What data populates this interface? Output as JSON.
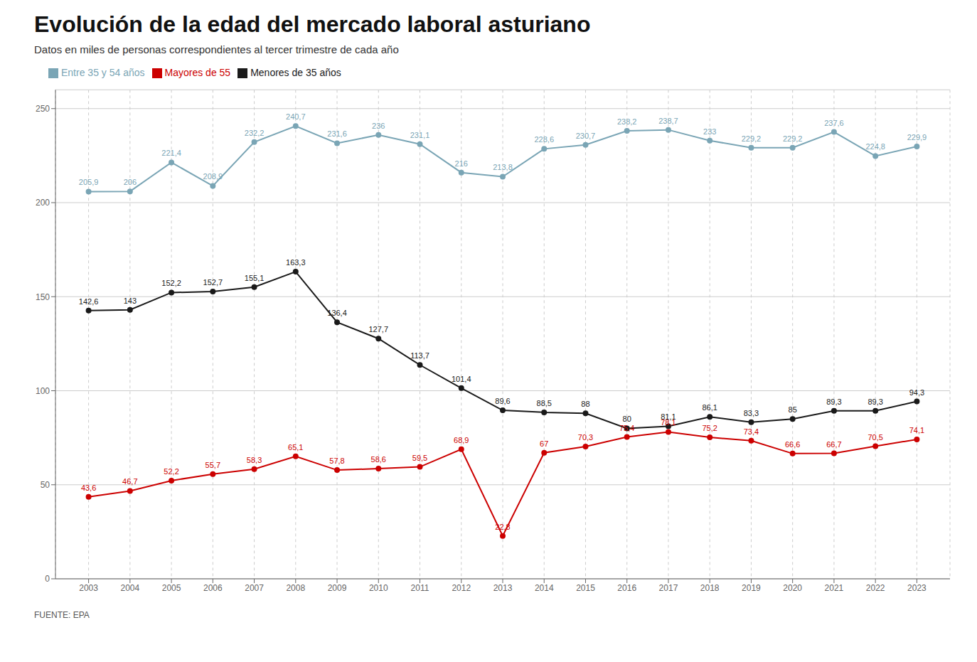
{
  "chart_data": {
    "type": "line",
    "title": "Evolución de la edad del mercado laboral asturiano",
    "subtitle": "Datos en miles de personas correspondientes al tercer trimestre de cada año",
    "source": "FUENTE: EPA",
    "x": [
      2003,
      2004,
      2005,
      2006,
      2007,
      2008,
      2009,
      2010,
      2011,
      2012,
      2013,
      2014,
      2015,
      2016,
      2017,
      2018,
      2019,
      2020,
      2021,
      2022,
      2023
    ],
    "series": [
      {
        "name": "Menores de 35 años",
        "color": "#1a1a1a",
        "marker": "circle",
        "values": [
          142.6,
          143.0,
          152.2,
          152.7,
          155.1,
          163.3,
          136.4,
          127.7,
          113.7,
          101.4,
          89.6,
          88.5,
          88.0,
          80.0,
          81.1,
          86.1,
          83.3,
          85.0,
          89.3,
          89.3,
          94.3
        ],
        "value_labels": [
          "142,6",
          "143",
          "152,2",
          "152,7",
          "155,1",
          "163,3",
          "136,4",
          "127,7",
          "113,7",
          "101,4",
          "89,6",
          "88,5",
          "88",
          "80",
          "81,1",
          "86,1",
          "83,3",
          "85",
          "89,3",
          "89,3",
          "94,3"
        ]
      },
      {
        "name": "Entre 35 y 54 años",
        "color": "#7aa5b5",
        "marker": "circle",
        "values": [
          205.9,
          206.0,
          221.4,
          208.9,
          232.2,
          240.7,
          231.6,
          236.0,
          231.1,
          216.0,
          213.8,
          228.6,
          230.7,
          238.2,
          238.7,
          233.0,
          229.2,
          229.2,
          237.6,
          224.8,
          229.9
        ],
        "value_labels": [
          "205,9",
          "206",
          "221,4",
          "208,9",
          "232,2",
          "240,7",
          "231,6",
          "236",
          "231,1",
          "216",
          "213,8",
          "228,6",
          "230,7",
          "238,2",
          "238,7",
          "233",
          "229,2",
          "229,2",
          "237,6",
          "224,8",
          "229,9"
        ]
      },
      {
        "name": "Mayores de 55",
        "color": "#cc0000",
        "marker": "circle",
        "values": [
          43.6,
          46.7,
          52.2,
          55.7,
          58.3,
          65.1,
          57.8,
          58.6,
          59.5,
          68.9,
          22.8,
          67.0,
          70.3,
          75.4,
          78.1,
          75.2,
          73.4,
          66.6,
          66.7,
          70.5,
          74.1
        ],
        "value_labels": [
          "43,6",
          "46,7",
          "52,2",
          "55,7",
          "58,3",
          "65,1",
          "57,8",
          "58,6",
          "59,5",
          "68,9",
          "22,8",
          "67",
          "70,3",
          "75,4",
          "78,1",
          "75,2",
          "73,4",
          "66,6",
          "66,7",
          "70,5",
          "74,1"
        ]
      }
    ],
    "xlim": [
      2002.2,
      2023.8
    ],
    "xticks": [
      2003,
      2004,
      2005,
      2006,
      2007,
      2008,
      2009,
      2010,
      2011,
      2012,
      2013,
      2014,
      2015,
      2016,
      2017,
      2018,
      2019,
      2020,
      2021,
      2022,
      2023
    ],
    "ylim": [
      0,
      260
    ],
    "yticks": [
      0,
      50,
      100,
      150,
      200,
      250
    ],
    "grid": true,
    "legend": "upper left",
    "data_labels": true
  }
}
